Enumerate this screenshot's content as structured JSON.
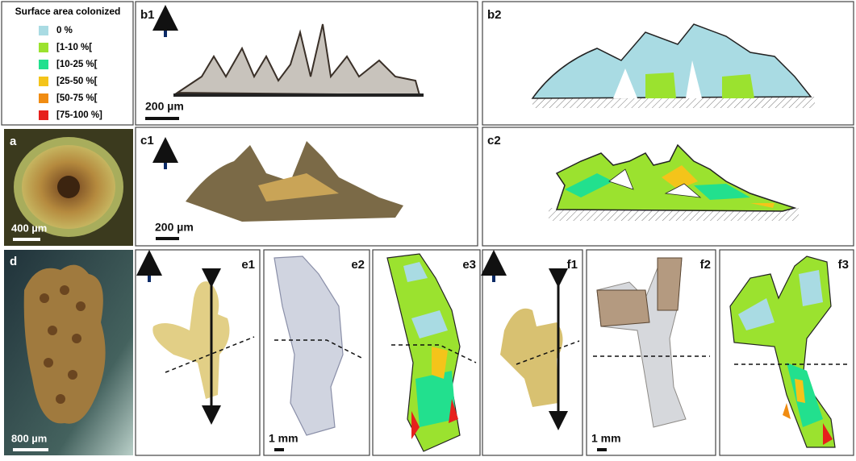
{
  "legend": {
    "title": "Surface area colonized",
    "items": [
      {
        "label": "0 %",
        "color": "#a9dbe3"
      },
      {
        "label": "[1-10 %[",
        "color": "#9be22f"
      },
      {
        "label": "[10-25 %[",
        "color": "#22e08e"
      },
      {
        "label": "[25-50 %[",
        "color": "#f4c41a"
      },
      {
        "label": "[50-75 %[",
        "color": "#f08c12"
      },
      {
        "label": "[75-100 %]",
        "color": "#e6201c"
      }
    ]
  },
  "panels": {
    "a": {
      "label": "a",
      "scale_bar": "400 µm"
    },
    "b1": {
      "label": "b1",
      "scale_bar": "200 µm"
    },
    "b2": {
      "label": "b2"
    },
    "c1": {
      "label": "c1",
      "scale_bar": "200 µm"
    },
    "c2": {
      "label": "c2"
    },
    "d": {
      "label": "d",
      "scale_bar": "800 µm"
    },
    "e1": {
      "label": "e1"
    },
    "e2": {
      "label": "e2",
      "scale_bar": "1 mm"
    },
    "e3": {
      "label": "e3"
    },
    "f1": {
      "label": "f1"
    },
    "f2": {
      "label": "f2",
      "scale_bar": "1 mm"
    },
    "f3": {
      "label": "f3"
    }
  }
}
